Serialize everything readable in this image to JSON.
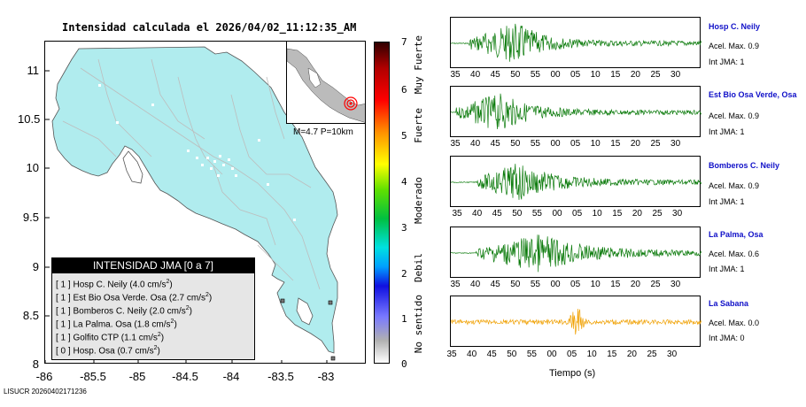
{
  "map": {
    "title": "Intensidad calculada el 2026/04/02_11:12:35_AM",
    "y_ticks": [
      "11",
      "10.5",
      "10",
      "9.5",
      "9",
      "8.5",
      "8"
    ],
    "x_ticks": [
      "-86",
      "-85.5",
      "-85",
      "-84.5",
      "-84",
      "-83.5",
      "-83"
    ],
    "inset_label": "M=4.7 P=10km",
    "colors": {
      "land": "#b0ecee",
      "epicenter": "#ff0000",
      "roads": "#bdbdbd"
    }
  },
  "legend": {
    "header": "INTENSIDAD JMA [0 a 7]",
    "rows": [
      {
        "level": "[ 1 ]",
        "station": "Hosp C. Neily",
        "value": "(4.0 cm/s",
        "unit_exp": "2",
        "close": ")"
      },
      {
        "level": "[ 1 ]",
        "station": "Est Bio Osa Verde. Osa",
        "value": "(2.7 cm/s",
        "unit_exp": "2",
        "close": ")"
      },
      {
        "level": "[ 1 ]",
        "station": "Bomberos C. Neily",
        "value": "(2.0 cm/s",
        "unit_exp": "2",
        "close": ")"
      },
      {
        "level": "[ 1 ]",
        "station": "La Palma. Osa",
        "value": "(1.8 cm/s",
        "unit_exp": "2",
        "close": ")"
      },
      {
        "level": "[ 1 ]",
        "station": "Golfito CTP",
        "value": "(1.1 cm/s",
        "unit_exp": "2",
        "close": ")"
      },
      {
        "level": "[ 0 ]",
        "station": "Hosp. Osa",
        "value": "(0.7 cm/s",
        "unit_exp": "2",
        "close": ")"
      }
    ]
  },
  "colorbar": {
    "ticks": [
      "7",
      "6",
      "5",
      "4",
      "3",
      "2",
      "1",
      "0"
    ],
    "categories": [
      "Muy Fuerte",
      "Fuerte",
      "Moderado",
      "Debil",
      "No sentido"
    ]
  },
  "waveforms": {
    "xlabel": "Tiempo (s)",
    "stations": [
      {
        "name": "Hosp C. Neily",
        "acel": "Acel. Max. 0.9",
        "int": "Int JMA: 1",
        "color": "#0a7a0a",
        "ticks": [
          "35",
          "40",
          "45",
          "50",
          "55",
          "00",
          "05",
          "10",
          "15",
          "20",
          "25",
          "30"
        ]
      },
      {
        "name": "Est Bio Osa Verde, Osa",
        "acel": "Acel. Max. 0.9",
        "int": "Int JMA: 1",
        "color": "#0a7a0a",
        "ticks": [
          "35",
          "40",
          "45",
          "50",
          "55",
          "00",
          "05",
          "10",
          "15",
          "20",
          "25",
          "30"
        ]
      },
      {
        "name": "Bomberos C. Neily",
        "acel": "Acel. Max. 0.9",
        "int": "Int JMA: 1",
        "color": "#0a7a0a",
        "ticks": [
          "35",
          "40",
          "45",
          "50",
          "55",
          "00",
          "05",
          "10",
          "15",
          "20",
          "25",
          "30"
        ]
      },
      {
        "name": "La Palma, Osa",
        "acel": "Acel. Max. 0.6",
        "int": "Int JMA: 1",
        "color": "#0a7a0a",
        "ticks": [
          "35",
          "40",
          "45",
          "50",
          "55",
          "00",
          "05",
          "10",
          "15",
          "20",
          "25",
          "30"
        ]
      },
      {
        "name": "La Sabana",
        "acel": "Acel. Max. 0.0",
        "int": "Int JMA: 0",
        "color": "#f0a000",
        "ticks": [
          "35",
          "40",
          "45",
          "50",
          "55",
          "00",
          "05",
          "10",
          "15",
          "20",
          "25",
          "30"
        ]
      }
    ]
  },
  "footer": {
    "code": "LISUCR 20260402171236"
  }
}
